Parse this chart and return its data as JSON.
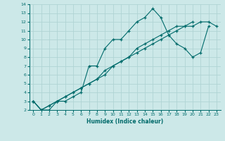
{
  "xlabel": "Humidex (Indice chaleur)",
  "bg_color": "#cce8e8",
  "line_color": "#006b6b",
  "grid_color": "#b0d4d4",
  "xlim": [
    -0.5,
    23.5
  ],
  "ylim": [
    2,
    14
  ],
  "xticks": [
    0,
    1,
    2,
    3,
    4,
    5,
    6,
    7,
    8,
    9,
    10,
    11,
    12,
    13,
    14,
    15,
    16,
    17,
    18,
    19,
    20,
    21,
    22,
    23
  ],
  "yticks": [
    2,
    3,
    4,
    5,
    6,
    7,
    8,
    9,
    10,
    11,
    12,
    13,
    14
  ],
  "series": [
    {
      "x": [
        0,
        1,
        2,
        3,
        4,
        5,
        6,
        7,
        8,
        9,
        10,
        11,
        12,
        13,
        14,
        15,
        16,
        17,
        18,
        19,
        20,
        21,
        22
      ],
      "y": [
        3,
        2,
        2,
        3,
        3,
        3.5,
        4,
        7,
        7,
        9,
        10,
        10,
        11,
        12,
        12.5,
        13.5,
        12.5,
        10.5,
        9.5,
        9,
        8,
        8.5,
        11.5
      ]
    },
    {
      "x": [
        0,
        1,
        2,
        3,
        4,
        5,
        6,
        7,
        8,
        9,
        10,
        11,
        12,
        13,
        14,
        15,
        16,
        17,
        18,
        19,
        20,
        21,
        22,
        23
      ],
      "y": [
        3,
        2,
        2.5,
        3,
        3.5,
        4,
        4.5,
        5,
        5.5,
        6,
        7,
        7.5,
        8,
        8.5,
        9,
        9.5,
        10,
        10.5,
        11,
        11.5,
        11.5,
        12,
        12,
        11.5
      ]
    },
    {
      "x": [
        0,
        1,
        2,
        3,
        4,
        5,
        6,
        7,
        8,
        9,
        10,
        11,
        12,
        13,
        14,
        15,
        16,
        17,
        18,
        19,
        20
      ],
      "y": [
        3,
        2,
        2.5,
        3,
        3.5,
        4,
        4.5,
        5,
        5.5,
        6.5,
        7,
        7.5,
        8,
        9,
        9.5,
        10,
        10.5,
        11,
        11.5,
        11.5,
        12
      ]
    }
  ]
}
